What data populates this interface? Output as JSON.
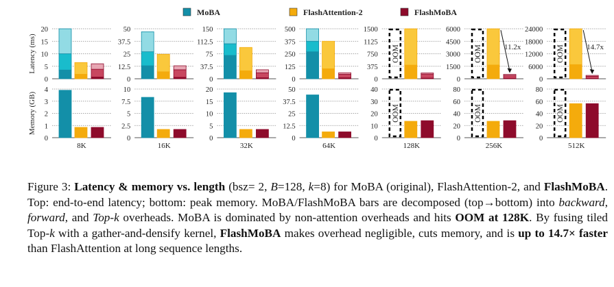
{
  "chart_data": {
    "type": "bar",
    "stacked": true,
    "categories": [
      "8K",
      "16K",
      "32K",
      "64K",
      "128K",
      "256K",
      "512K"
    ],
    "legend": {
      "placement": "top",
      "entries": [
        "MoBA",
        "FlashAttention-2",
        "FlashMoBA"
      ]
    },
    "colors": {
      "MoBA": [
        "#138fa8",
        "#19bccc",
        "#92dbe4"
      ],
      "FlashAttention-2": [
        "#f4ab0c",
        "#fac83c"
      ],
      "FlashMoBA": [
        "#8e0b2b",
        "#c84760",
        "#e7a6b3"
      ]
    },
    "grid": true,
    "oom_label": "OOM",
    "latency": {
      "ylabel": "Latency (ms)",
      "components_bottom_to_top": [
        "Top-k",
        "forward",
        "backward"
      ],
      "ylims": [
        [
          0,
          20
        ],
        [
          0,
          50
        ],
        [
          0,
          150
        ],
        [
          0,
          500
        ],
        [
          0,
          1500
        ],
        [
          0,
          6000
        ],
        [
          0,
          24000
        ]
      ],
      "ticks": [
        [
          "0",
          "5",
          "10",
          "15",
          "20"
        ],
        [
          "0",
          "12.5",
          "25",
          "37.5",
          "50"
        ],
        [
          "0",
          "37.5",
          "75",
          "112.5",
          "150"
        ],
        [
          "0",
          "125",
          "250",
          "375",
          "500"
        ],
        [
          "0",
          "375",
          "750",
          "1125",
          "1500"
        ],
        [
          "0",
          "1500",
          "3000",
          "4500",
          "6000"
        ],
        [
          "0",
          "6000",
          "12000",
          "18000",
          "24000"
        ]
      ],
      "series": [
        {
          "name": "MoBA",
          "values": [
            [
              3.5,
              6.5,
              10
            ],
            [
              13,
              14,
              20
            ],
            [
              70,
              35,
              45
            ],
            [
              270,
              105,
              125
            ],
            null,
            null,
            null
          ]
        },
        {
          "name": "FlashAttention-2",
          "values": [
            [
              1.8,
              4.7
            ],
            [
              7,
              17.5
            ],
            [
              24,
              70
            ],
            [
              100,
              275
            ],
            [
              410,
              1090
            ],
            [
              1650,
              4350
            ],
            [
              6800,
              17200
            ]
          ]
        },
        {
          "name": "FlashMoBA",
          "values": [
            [
              0.7,
              3.1,
              2.2
            ],
            [
              1.5,
              7.5,
              4
            ],
            [
              3,
              15,
              9
            ],
            [
              10,
              35,
              15
            ],
            [
              20,
              120,
              35
            ],
            [
              60,
              340,
              130
            ],
            [
              200,
              1000,
              430
            ]
          ]
        }
      ],
      "annotations": [
        {
          "category": "256K",
          "text": "11.2x"
        },
        {
          "category": "512K",
          "text": "14.7x"
        }
      ]
    },
    "memory": {
      "ylabel": "Memory (GB)",
      "ylims": [
        [
          0,
          4
        ],
        [
          0,
          10
        ],
        [
          0,
          20
        ],
        [
          0,
          50
        ],
        [
          0,
          40
        ],
        [
          0,
          80
        ],
        [
          0,
          80
        ]
      ],
      "ticks": [
        [
          "0",
          "1",
          "2",
          "3",
          "4"
        ],
        [
          "0",
          "2.5",
          "5",
          "7.5",
          "10"
        ],
        [
          "0",
          "5",
          "10",
          "15",
          "20"
        ],
        [
          "0",
          "12.5",
          "25",
          "37.5",
          "50"
        ],
        [
          "0",
          "10",
          "20",
          "30",
          "40"
        ],
        [
          "0",
          "20",
          "40",
          "60",
          "80"
        ],
        [
          "0",
          "20",
          "40",
          "60",
          "80"
        ]
      ],
      "series": [
        {
          "name": "MoBA",
          "values": [
            3.9,
            8.3,
            18.5,
            44,
            null,
            null,
            null
          ]
        },
        {
          "name": "FlashAttention-2",
          "values": [
            0.85,
            1.7,
            3.4,
            6,
            13.5,
            27,
            56
          ]
        },
        {
          "name": "FlashMoBA",
          "values": [
            0.85,
            1.7,
            3.4,
            6,
            14,
            28,
            56
          ]
        }
      ]
    }
  },
  "caption": [
    {
      "t": "Figure 3:  ",
      "s": ""
    },
    {
      "t": "Latency & memory vs. length",
      "s": "b"
    },
    {
      "t": " (bsz= 2, ",
      "s": ""
    },
    {
      "t": "B",
      "s": "i"
    },
    {
      "t": "=128, ",
      "s": ""
    },
    {
      "t": "k",
      "s": "i"
    },
    {
      "t": "=8) for MoBA (original), FlashAttention-2, and ",
      "s": ""
    },
    {
      "t": "FlashMoBA",
      "s": "b"
    },
    {
      "t": ". Top: end-to-end latency; bottom: peak memory. MoBA/FlashMoBA bars are decomposed (top→bottom) into ",
      "s": ""
    },
    {
      "t": "backward",
      "s": "i"
    },
    {
      "t": ", ",
      "s": ""
    },
    {
      "t": "forward",
      "s": "i"
    },
    {
      "t": ", and ",
      "s": ""
    },
    {
      "t": "Top-k",
      "s": "i"
    },
    {
      "t": " overheads. MoBA is dominated by non-attention overheads and hits ",
      "s": ""
    },
    {
      "t": "OOM at 128K",
      "s": "b"
    },
    {
      "t": ". By fusing tiled Top-",
      "s": ""
    },
    {
      "t": "k",
      "s": "i"
    },
    {
      "t": " with a gather-and-densify kernel, ",
      "s": ""
    },
    {
      "t": "FlashMoBA",
      "s": "b"
    },
    {
      "t": " makes overhead negligible, cuts memory, and is ",
      "s": ""
    },
    {
      "t": "up to 14.7× faster",
      "s": "b"
    },
    {
      "t": " than FlashAttention at long sequence lengths.",
      "s": ""
    }
  ]
}
